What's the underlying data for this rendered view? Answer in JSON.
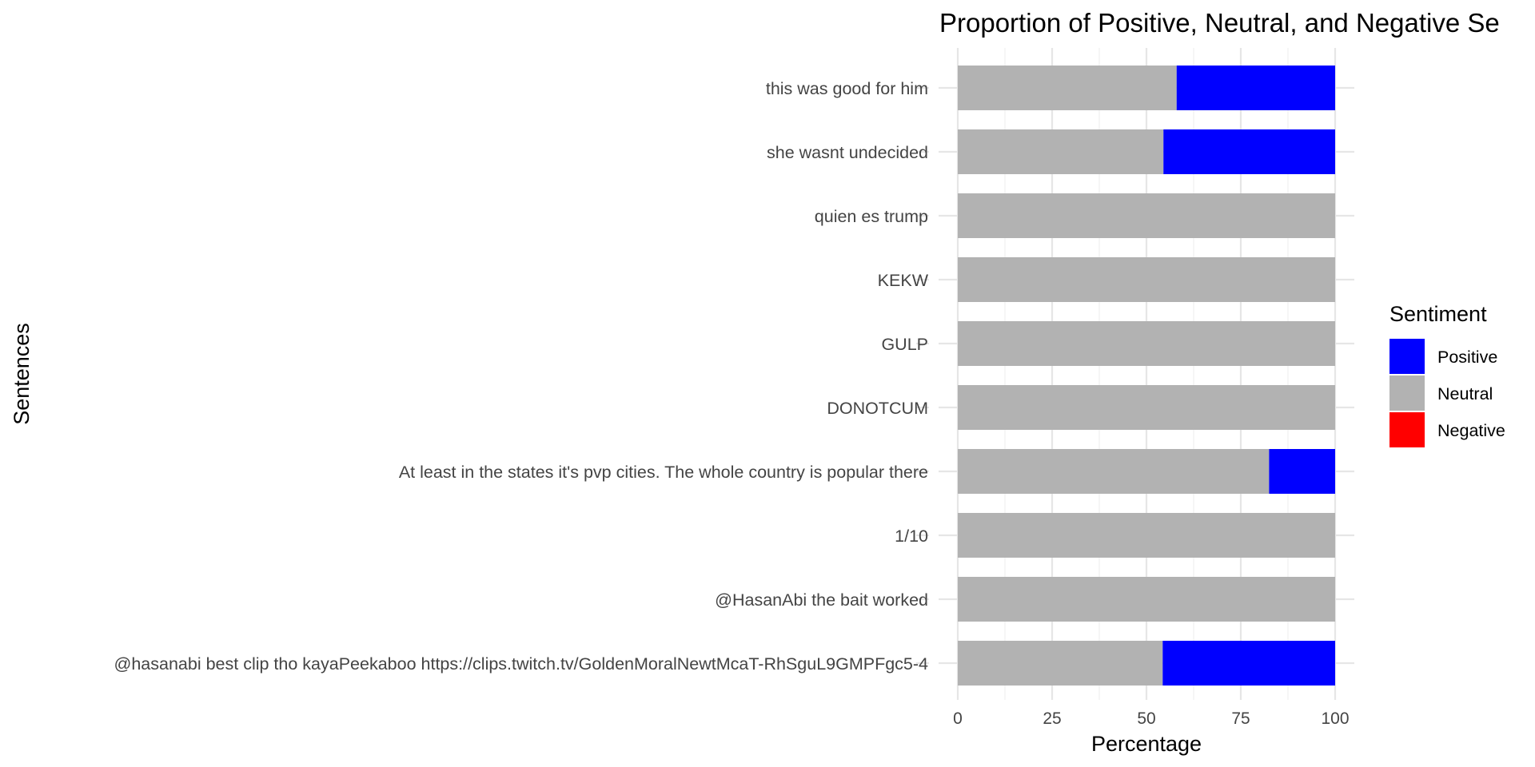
{
  "chart_data": {
    "type": "bar",
    "orientation": "horizontal",
    "stacked": true,
    "title": "Proportion of Positive, Neutral, and Negative Se",
    "xlabel": "Percentage",
    "ylabel": "Sentences",
    "xlim": [
      0,
      100
    ],
    "xticks": [
      0,
      25,
      50,
      75,
      100
    ],
    "grid": true,
    "legend": {
      "title": "Sentiment",
      "position": "right",
      "entries": [
        "Positive",
        "Neutral",
        "Negative"
      ]
    },
    "colors": {
      "Positive": "#0000ff",
      "Neutral": "#b2b2b2",
      "Negative": "#ff0000"
    },
    "categories": [
      "this was good for him",
      "she wasnt undecided",
      "quien es trump",
      "KEKW",
      "GULP",
      "DONOTCUM",
      "At least in the states it's pvp cities. The whole country is popular there",
      "1/10",
      "@HasanAbi the bait worked",
      "@hasanabi best clip tho kayaPeekaboo https://clips.twitch.tv/GoldenMoralNewtMcaT-RhSguL9GMPFgc5-4"
    ],
    "series": [
      {
        "name": "Neutral",
        "values": [
          58,
          54.5,
          100,
          100,
          100,
          100,
          82.5,
          100,
          100,
          54.3
        ]
      },
      {
        "name": "Positive",
        "values": [
          42,
          45.5,
          0,
          0,
          0,
          0,
          17.5,
          0,
          0,
          45.7
        ]
      },
      {
        "name": "Negative",
        "values": [
          0,
          0,
          0,
          0,
          0,
          0,
          0,
          0,
          0,
          0
        ]
      }
    ]
  }
}
